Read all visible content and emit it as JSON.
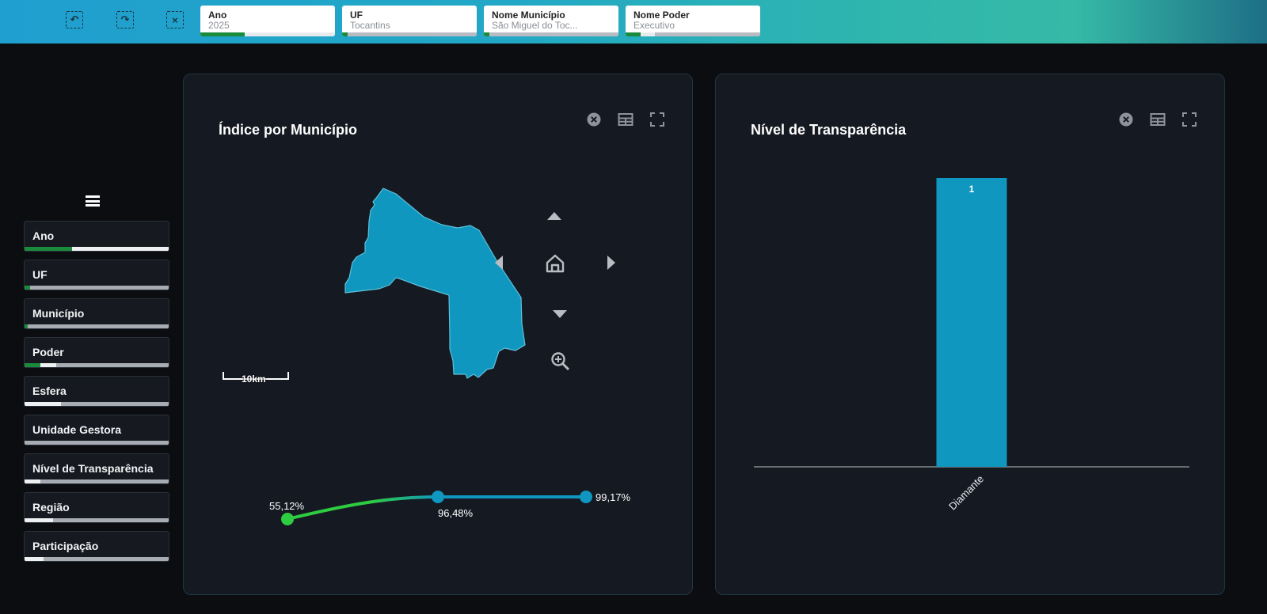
{
  "toolbar": {
    "icons": [
      "undo-selection-icon",
      "redo-selection-icon",
      "clear-selection-icon"
    ]
  },
  "filters": [
    {
      "title": "Ano",
      "value": "2025",
      "selected_fraction": 0.33,
      "excluded_fraction": 0.67
    },
    {
      "title": "UF",
      "value": "Tocantins",
      "selected_fraction": 0.04,
      "excluded_fraction": 0
    },
    {
      "title": "Nome Município",
      "value": "São Miguel do Toc...",
      "selected_fraction": 0.04,
      "excluded_fraction": 0
    },
    {
      "title": "Nome Poder",
      "value": "Executivo",
      "selected_fraction": 0.11,
      "excluded_fraction": 0.11
    }
  ],
  "sidebar": {
    "menu_icon": "hamburger-menu-icon",
    "items": [
      {
        "label": "Ano",
        "selected_fraction": 0.33,
        "excluded_fraction": 0.67
      },
      {
        "label": "UF",
        "selected_fraction": 0.04,
        "excluded_fraction": 0
      },
      {
        "label": "Município",
        "selected_fraction": 0.02,
        "excluded_fraction": 0
      },
      {
        "label": "Poder",
        "selected_fraction": 0.11,
        "excluded_fraction": 0.11
      },
      {
        "label": "Esfera",
        "selected_fraction": 0,
        "excluded_fraction": 0.25
      },
      {
        "label": "Unidade Gestora",
        "selected_fraction": 0,
        "excluded_fraction": 0
      },
      {
        "label": "Nível de Transparência",
        "selected_fraction": 0,
        "excluded_fraction": 0.11
      },
      {
        "label": "Região",
        "selected_fraction": 0,
        "excluded_fraction": 0.2
      },
      {
        "label": "Participação",
        "selected_fraction": 0,
        "excluded_fraction": 0.13
      }
    ]
  },
  "panels": {
    "map": {
      "title": "Índice por Município",
      "tools": [
        "close-icon",
        "table-icon",
        "fullscreen-icon"
      ],
      "scale_label": "10km",
      "map_color": "#1097bf",
      "nav_icons": [
        "pan-up-icon",
        "pan-left-icon",
        "home-icon",
        "pan-right-icon",
        "pan-down-icon",
        "zoom-in-icon"
      ],
      "legend": {
        "min_label": "55,12%",
        "mid_label": "96,48%",
        "max_label": "99,17%",
        "color_low": "#2ecc40",
        "color_high": "#1097bf"
      }
    },
    "bar": {
      "title": "Nível de Transparência",
      "tools": [
        "close-icon",
        "table-icon",
        "fullscreen-icon"
      ]
    }
  },
  "chart_data": {
    "type": "bar",
    "title": "Nível de Transparência",
    "categories": [
      "Diamante"
    ],
    "values": [
      1
    ],
    "data_labels": [
      "1"
    ],
    "xlabel": "",
    "ylabel": "",
    "ylim": [
      0,
      1
    ],
    "grid": false,
    "bar_color": "#1097bf"
  }
}
